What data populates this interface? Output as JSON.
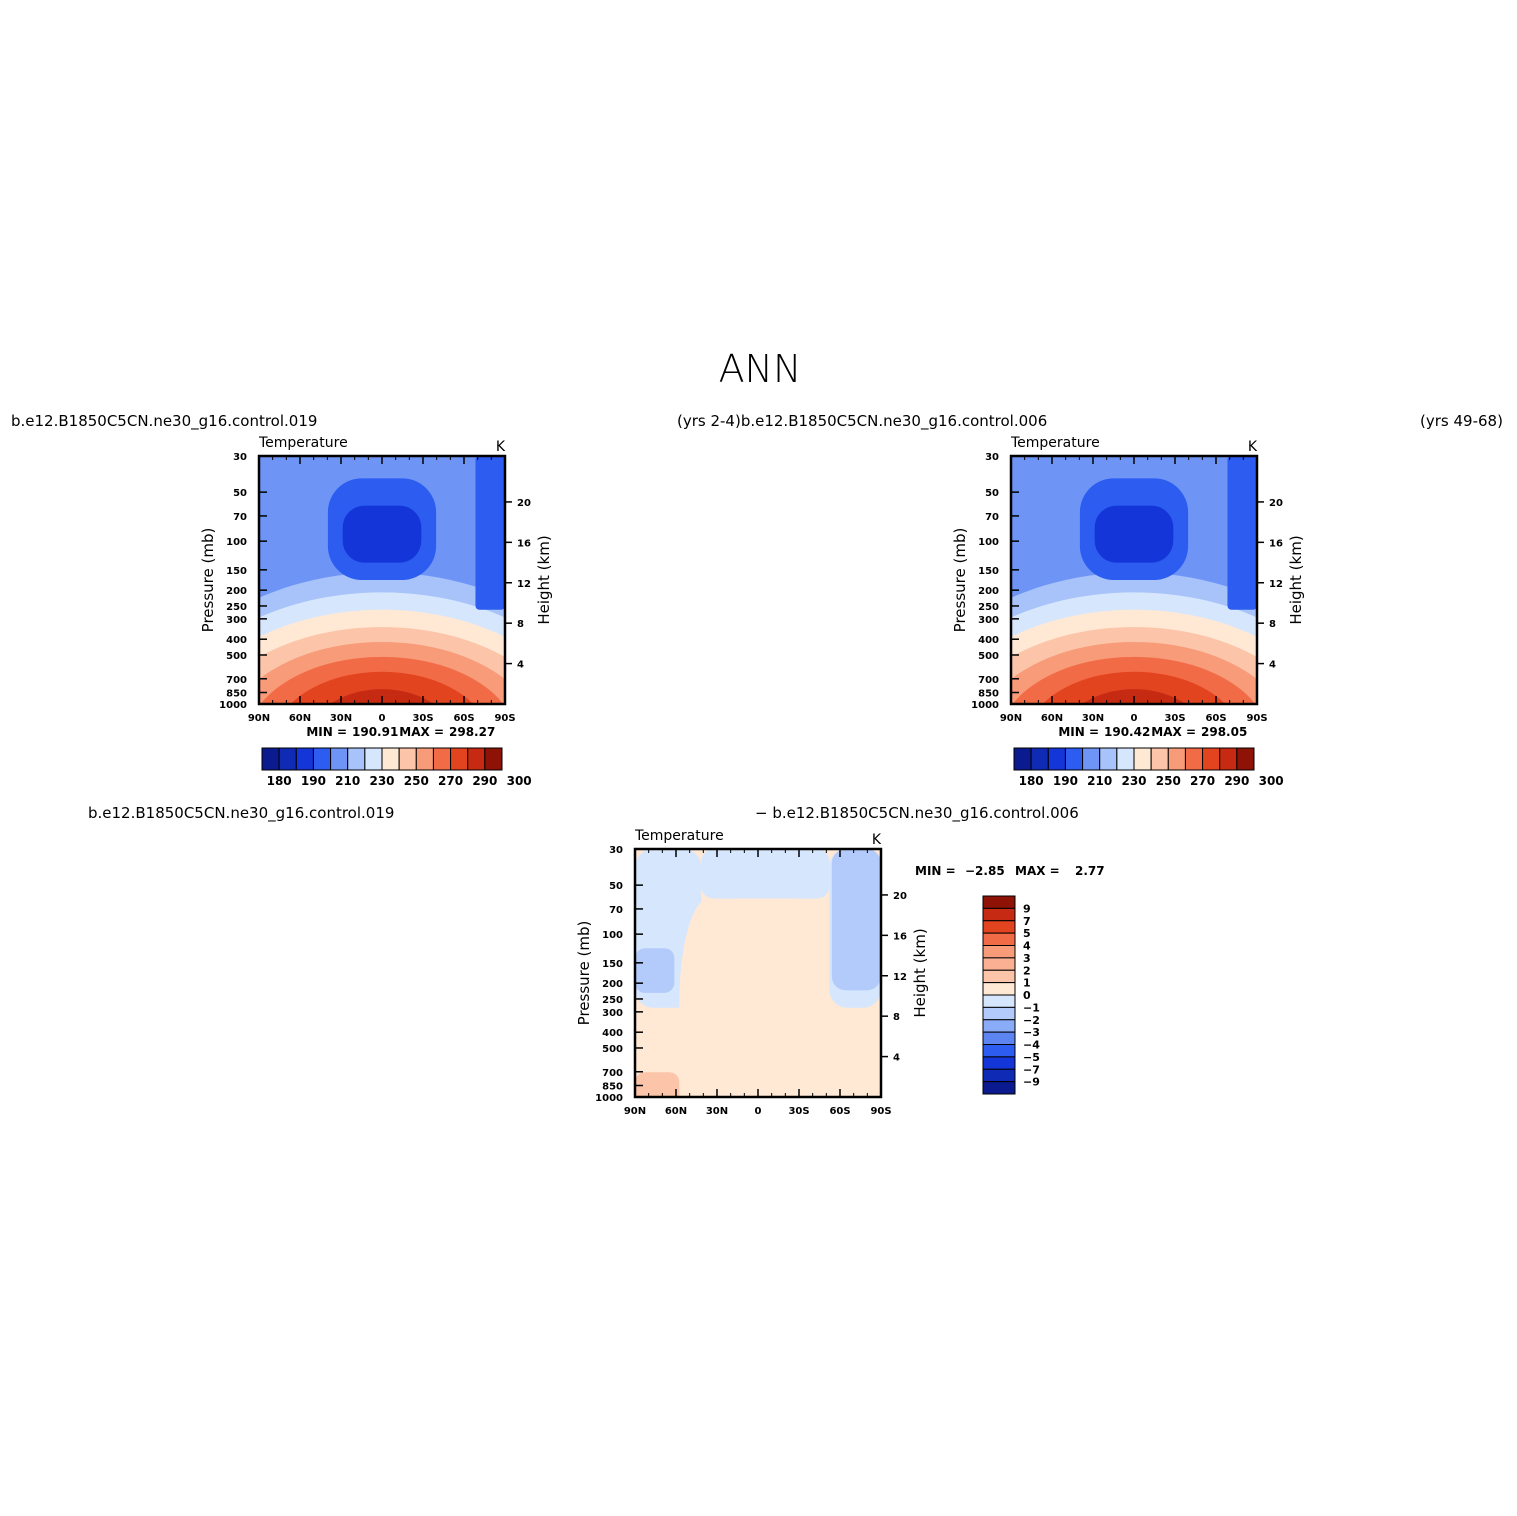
{
  "main_title": "ANN",
  "header_left": "b.e12.B1850C5CN.ne30_g16.control.019",
  "header_mid": "(yrs  2-4)b.e12.B1850C5CN.ne30_g16.control.006",
  "header_right": "(yrs  49-68)",
  "diff_left": "b.e12.B1850C5CN.ne30_g16.control.019",
  "diff_mid": "−  b.e12.B1850C5CN.ne30_g16.control.006",
  "chart_data": [
    {
      "type": "heatmap",
      "title": "Temperature",
      "units": "K",
      "ylabel": "Pressure  (mb)",
      "ylabel_right": "Height  (km)",
      "x_ticks": [
        "90N",
        "60N",
        "30N",
        "0",
        "30S",
        "60S",
        "90S"
      ],
      "y_ticks": [
        "30",
        "50",
        "70",
        "100",
        "150",
        "200",
        "250",
        "300",
        "400",
        "500",
        "700",
        "850",
        "1000"
      ],
      "y_right_ticks": [
        "4",
        "8",
        "12",
        "16",
        "20"
      ],
      "stats": {
        "min_label": "MIN =",
        "min": "190.91",
        "max_label": "MAX =",
        "max": "298.27"
      },
      "colorbar": {
        "labels": [
          "180",
          "190",
          "210",
          "230",
          "250",
          "270",
          "290",
          "300"
        ],
        "colors": [
          "#0b1a8e",
          "#0f2ab5",
          "#1436d8",
          "#2c5cf0",
          "#6e95f6",
          "#a8c2fa",
          "#d6e6fd",
          "#ffe9d5",
          "#fcc4a8",
          "#f89b78",
          "#f26b47",
          "#e34420",
          "#c62a12",
          "#8e1206"
        ]
      }
    },
    {
      "type": "heatmap",
      "title": "Temperature",
      "units": "K",
      "ylabel": "Pressure  (mb)",
      "ylabel_right": "Height  (km)",
      "x_ticks": [
        "90N",
        "60N",
        "30N",
        "0",
        "30S",
        "60S",
        "90S"
      ],
      "y_ticks": [
        "30",
        "50",
        "70",
        "100",
        "150",
        "200",
        "250",
        "300",
        "400",
        "500",
        "700",
        "850",
        "1000"
      ],
      "y_right_ticks": [
        "4",
        "8",
        "12",
        "16",
        "20"
      ],
      "stats": {
        "min_label": "MIN =",
        "min": "190.42",
        "max_label": "MAX =",
        "max": "298.05"
      },
      "colorbar": {
        "labels": [
          "180",
          "190",
          "210",
          "230",
          "250",
          "270",
          "290",
          "300"
        ],
        "colors": [
          "#0b1a8e",
          "#0f2ab5",
          "#1436d8",
          "#2c5cf0",
          "#6e95f6",
          "#a8c2fa",
          "#d6e6fd",
          "#ffe9d5",
          "#fcc4a8",
          "#f89b78",
          "#f26b47",
          "#e34420",
          "#c62a12",
          "#8e1206"
        ]
      }
    },
    {
      "type": "heatmap",
      "title": "Temperature",
      "units": "K",
      "ylabel": "Pressure  (mb)",
      "ylabel_right": "Height  (km)",
      "x_ticks": [
        "90N",
        "60N",
        "30N",
        "0",
        "30S",
        "60S",
        "90S"
      ],
      "y_ticks": [
        "30",
        "50",
        "70",
        "100",
        "150",
        "200",
        "250",
        "300",
        "400",
        "500",
        "700",
        "850",
        "1000"
      ],
      "y_right_ticks": [
        "4",
        "8",
        "12",
        "16",
        "20"
      ],
      "stats": {
        "min_label": "MIN =",
        "min": "−2.85",
        "max_label": "MAX =",
        "max": "2.77"
      },
      "colorbar": {
        "labels": [
          "9",
          "7",
          "5",
          "4",
          "3",
          "2",
          "1",
          "0",
          "−1",
          "−2",
          "−3",
          "−4",
          "−5",
          "−7",
          "−9"
        ],
        "colors": [
          "#8e1206",
          "#c62a12",
          "#e34420",
          "#f26b47",
          "#f89b78",
          "#fbb094",
          "#fcc4a8",
          "#ffe9d5",
          "#d6e6fd",
          "#b3cbfb",
          "#8aacf8",
          "#5c85f2",
          "#2c5cf0",
          "#1436d8",
          "#0f2ab5",
          "#0b1a8e"
        ]
      }
    }
  ]
}
